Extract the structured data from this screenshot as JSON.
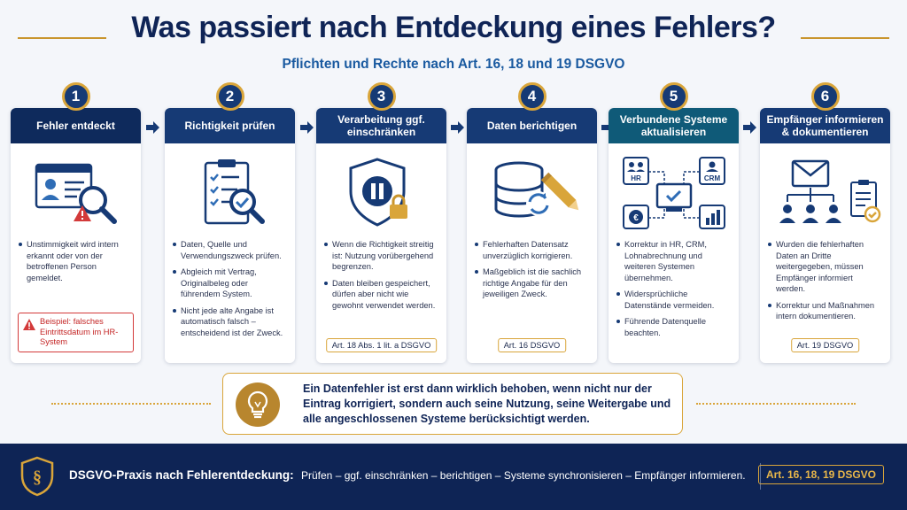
{
  "header": {
    "title": "Was passiert nach Entdeckung eines Fehlers?",
    "subtitle": "Pflichten und Rechte nach Art. 16, 18 und 19 DSGVO"
  },
  "steps": [
    {
      "number": "1",
      "title": "Fehler entdeckt",
      "icon": "id-card-magnifier-warning-icon",
      "bullets": [
        "Unstimmigkeit wird intern erkannt oder von der betroffenen Person gemeldet."
      ],
      "example": "Beispiel: falsches Eintrittsdatum im HR-System"
    },
    {
      "number": "2",
      "title": "Richtigkeit prüfen",
      "icon": "clipboard-check-icon",
      "bullets": [
        "Daten, Quelle und Verwendungszweck prüfen.",
        "Abgleich mit Vertrag, Originalbeleg oder führendem System.",
        "Nicht jede alte Angabe ist automatisch falsch – entscheidend ist der Zweck."
      ]
    },
    {
      "number": "3",
      "title": "Verarbeitung ggf. einschränken",
      "icon": "shield-pause-lock-icon",
      "bullets": [
        "Wenn die Richtigkeit streitig ist: Nutzung vorübergehend begrenzen.",
        "Daten bleiben gespeichert, dürfen aber nicht wie gewohnt verwendet werden."
      ],
      "ref": "Art. 18 Abs. 1 lit. a DSGVO"
    },
    {
      "number": "4",
      "title": "Daten berichtigen",
      "icon": "database-pencil-icon",
      "bullets": [
        "Fehlerhaften Datensatz unverzüglich korrigieren.",
        "Maßgeblich ist die sachlich richtige Angabe für den jeweiligen Zweck."
      ],
      "ref": "Art. 16 DSGVO"
    },
    {
      "number": "5",
      "title": "Verbundene Systeme aktualisieren",
      "icon": "connected-systems-icon",
      "icon_labels": {
        "hr": "HR",
        "crm": "CRM"
      },
      "bullets": [
        "Korrektur in HR, CRM, Lohnabrechnung und weiteren Systemen übernehmen.",
        "Widersprüchliche Datenstände vermeiden.",
        "Führende Datenquelle beachten."
      ]
    },
    {
      "number": "6",
      "title": "Empfänger informieren & dokumentieren",
      "icon": "mail-recipients-clipboard-icon",
      "bullets": [
        "Wurden die fehlerhaften Daten an Dritte weitergegeben, müssen Empfänger informiert werden.",
        "Korrektur und Maßnahmen intern dokumentieren."
      ],
      "ref": "Art. 19 DSGVO"
    }
  ],
  "info": {
    "icon": "lightbulb-icon",
    "text": "Ein Datenfehler ist erst dann wirklich behoben, wenn nicht nur der Eintrag korrigiert, sondern auch seine Nutzung, seine Weitergabe und alle angeschlossenen Systeme berücksichtigt werden."
  },
  "footer": {
    "icon": "paragraph-shield-icon",
    "label": "DSGVO-Praxis nach Fehlerentdeckung:",
    "text": "Prüfen – ggf. einschränken – berichtigen – Systeme synchronisieren – Empfänger informieren.",
    "ref": "Art. 16, 18, 19 DSGVO"
  },
  "colors": {
    "navy": "#163a75",
    "teal": "#0f5a78",
    "gold": "#d9a53a",
    "warning_red": "#d33a3a"
  }
}
